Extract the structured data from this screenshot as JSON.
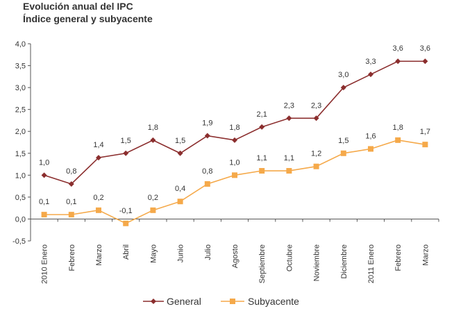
{
  "chart_data": {
    "type": "line",
    "title": "Evolución anual del IPC",
    "subtitle": "Índice general y subyacente",
    "xlabel": "",
    "ylabel": "",
    "ylim": [
      -0.5,
      4.0
    ],
    "yticks": [
      "4,0",
      "3,5",
      "3,0",
      "2,5",
      "2,0",
      "1,5",
      "1,0",
      "0,5",
      "0,0",
      "-0,5"
    ],
    "ytick_values": [
      4.0,
      3.5,
      3.0,
      2.5,
      2.0,
      1.5,
      1.0,
      0.5,
      0.0,
      -0.5
    ],
    "grid": false,
    "legend_position": "bottom",
    "categories": [
      "2010 Enero",
      "Febrero",
      "Marzo",
      "Abril",
      "Mayo",
      "Junio",
      "Julio",
      "Agosto",
      "Septiembre",
      "Octubre",
      "Noviembre",
      "Diciembre",
      "2011 Enero",
      "Febrero",
      "Marzo"
    ],
    "series": [
      {
        "name": "General",
        "color": "#8B2E2E",
        "marker": "diamond",
        "values": [
          1.0,
          0.8,
          1.4,
          1.5,
          1.8,
          1.5,
          1.9,
          1.8,
          2.1,
          2.3,
          2.3,
          3.0,
          3.3,
          3.6,
          3.6
        ],
        "labels": [
          "1,0",
          "0,8",
          "1,4",
          "1,5",
          "1,8",
          "1,5",
          "1,9",
          "1,8",
          "2,1",
          "2,3",
          "2,3",
          "3,0",
          "3,3",
          "3,6",
          "3,6"
        ]
      },
      {
        "name": "Subyacente",
        "color": "#F5A94A",
        "marker": "square",
        "values": [
          0.1,
          0.1,
          0.2,
          -0.1,
          0.2,
          0.4,
          0.8,
          1.0,
          1.1,
          1.1,
          1.2,
          1.5,
          1.6,
          1.8,
          1.7
        ],
        "labels": [
          "0,1",
          "0,1",
          "0,2",
          "-0,1",
          "0,2",
          "0,4",
          "0,8",
          "1,0",
          "1,1",
          "1,1",
          "1,2",
          "1,5",
          "1,6",
          "1,8",
          "1,7"
        ]
      }
    ]
  }
}
